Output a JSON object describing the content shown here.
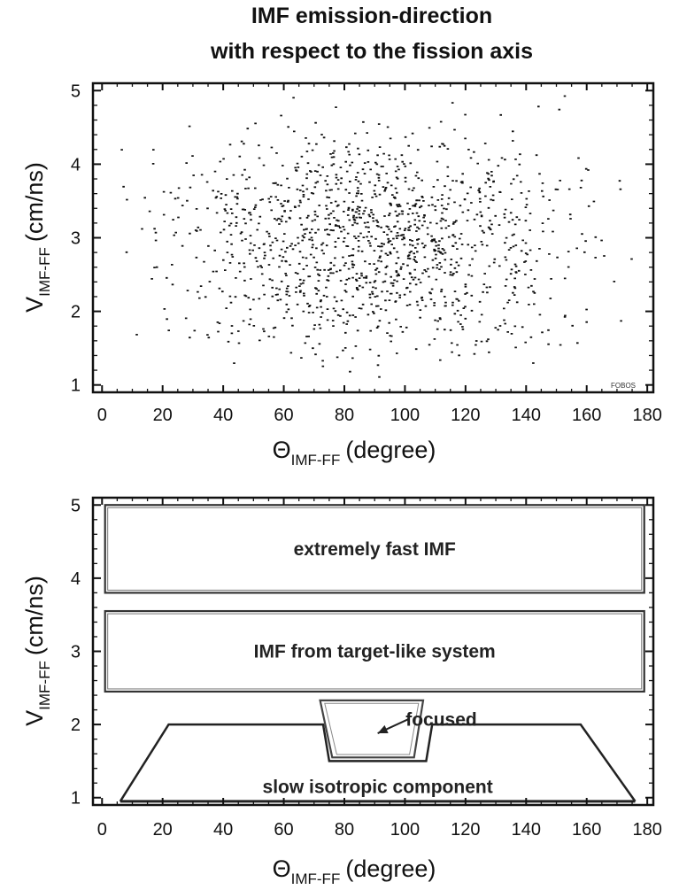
{
  "title": {
    "line1": "IMF emission-direction",
    "line2": "with respect to the fission axis"
  },
  "chart_data": [
    {
      "type": "scatter",
      "title": "",
      "xlabel_main": "Θ",
      "xlabel_sub": "IMF-FF",
      "xlabel_unit": "(degree)",
      "ylabel_main": "V",
      "ylabel_sub": "IMF-FF",
      "ylabel_unit": "(cm/ns)",
      "xlim": [
        -3,
        182
      ],
      "ylim": [
        0.9,
        5.1
      ],
      "xticks": [
        0,
        20,
        40,
        60,
        80,
        100,
        120,
        140,
        160,
        180
      ],
      "yticks": [
        1,
        2,
        3,
        4,
        5
      ],
      "grid": false,
      "watermark": "FOBOS",
      "points_description": "dense cloud of event points, x roughly 5–175 degree, y roughly 1–5 cm/ns, densest near x 40–140, y 2.5–4"
    },
    {
      "type": "diagram",
      "xlabel_main": "Θ",
      "xlabel_sub": "IMF-FF",
      "xlabel_unit": "(degree)",
      "ylabel_main": "V",
      "ylabel_sub": "IMF-FF",
      "ylabel_unit": "(cm/ns)",
      "xlim": [
        -3,
        182
      ],
      "ylim": [
        0.9,
        5.1
      ],
      "xticks": [
        0,
        20,
        40,
        60,
        80,
        100,
        120,
        140,
        160,
        180
      ],
      "yticks": [
        1,
        2,
        3,
        4,
        5
      ],
      "regions": [
        {
          "label": "extremely fast IMF",
          "x": [
            1,
            179
          ],
          "y": [
            3.8,
            5.0
          ]
        },
        {
          "label": "IMF from target-like system",
          "x": [
            1,
            179
          ],
          "y": [
            2.45,
            3.55
          ]
        },
        {
          "label": "slow isotropic component",
          "polygon": [
            [
              6,
              0.95
            ],
            [
              22,
              2.0
            ],
            [
              73,
              2.0
            ],
            [
              75,
              1.5
            ],
            [
              107,
              1.5
            ],
            [
              109,
              2.0
            ],
            [
              158,
              2.0
            ],
            [
              176,
              0.95
            ]
          ]
        },
        {
          "label": "focused",
          "polygon": [
            [
              72,
              2.33
            ],
            [
              106,
              2.33
            ],
            [
              103,
              1.55
            ],
            [
              76,
              1.55
            ]
          ]
        }
      ]
    }
  ]
}
